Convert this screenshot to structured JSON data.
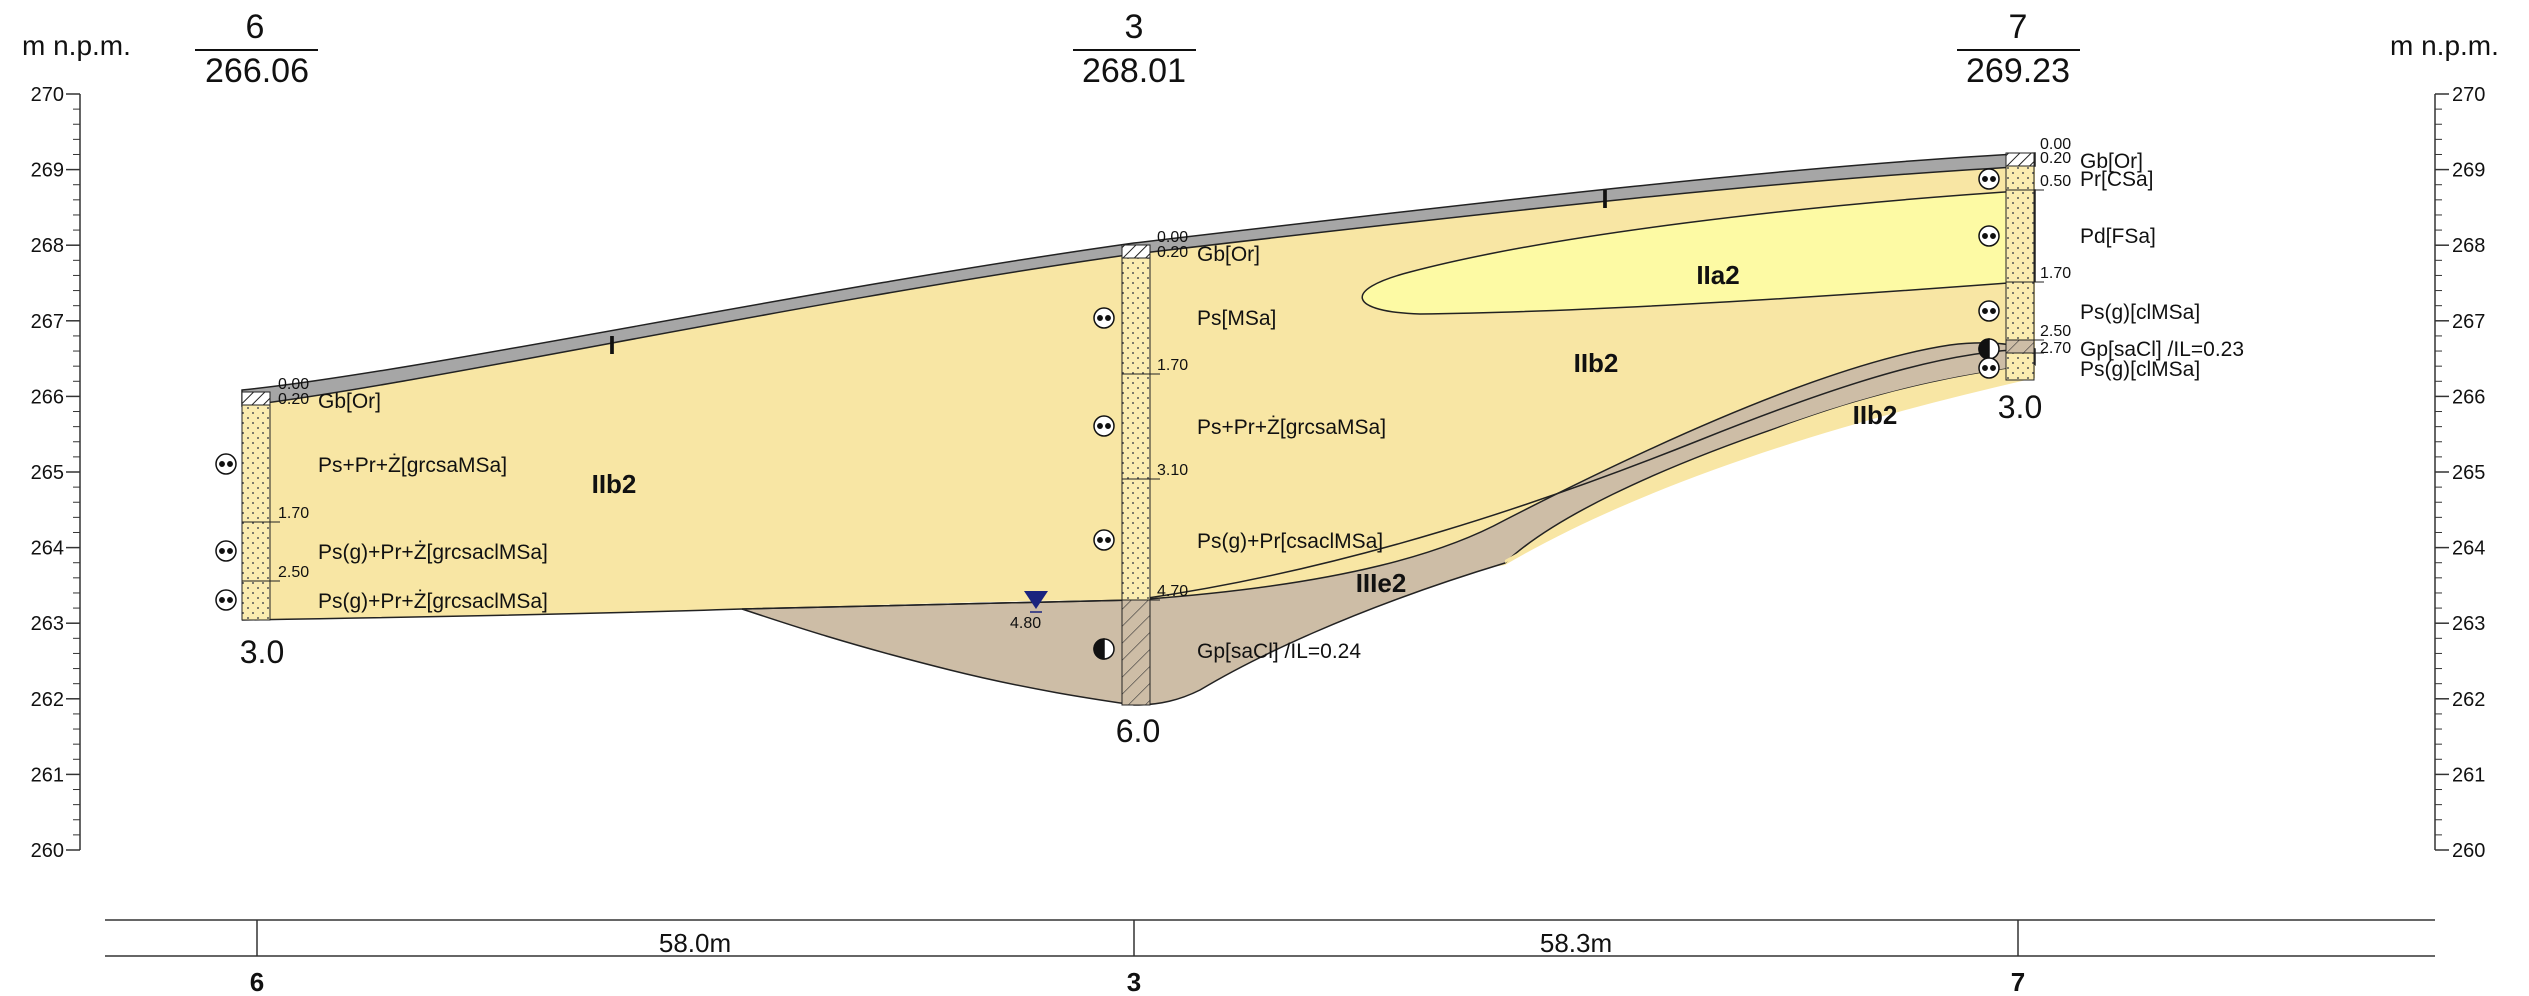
{
  "axis": {
    "unit_label_left": "m n.p.m.",
    "unit_label_right": "m n.p.m.",
    "ticks": [
      "270",
      "269",
      "268",
      "267",
      "266",
      "265",
      "264",
      "263",
      "262",
      "261",
      "260"
    ]
  },
  "boreholes": [
    {
      "id": "6",
      "elevation": "266.06",
      "depth": "3.0",
      "depth_marks": [
        "0.00",
        "0.20",
        "1.70",
        "2.50"
      ],
      "layers": [
        "Gb[Or]",
        "Ps+Pr+Ż[grcsaMSa]",
        "Ps(g)+Pr+Ż[grcsaclMSa]",
        "Ps(g)+Pr+Ż[grcsaclMSa]"
      ]
    },
    {
      "id": "3",
      "elevation": "268.01",
      "depth": "6.0",
      "depth_marks": [
        "0.00",
        "0.20",
        "1.70",
        "3.10",
        "4.70"
      ],
      "layers": [
        "Gb[Or]",
        "Ps[MSa]",
        "Ps+Pr+Ż[grcsaMSa]",
        "Ps(g)+Pr[csaclMSa]",
        "Gp[saCl] /IL=0.24"
      ],
      "water_level": "4.80"
    },
    {
      "id": "7",
      "elevation": "269.23",
      "depth": "3.0",
      "depth_marks": [
        "0.00",
        "0.20",
        "0.50",
        "1.70",
        "2.50",
        "2.70"
      ],
      "layers": [
        "Gb[Or]",
        "Pr[CSa]",
        "Pd[FSa]",
        "Ps(g)[clMSa]",
        "Gp[saCl] /IL=0.23",
        "Ps(g)[clMSa]"
      ]
    }
  ],
  "zones": [
    "I",
    "I",
    "IIb2",
    "IIb2",
    "IIb2",
    "IIa2",
    "IIIe2"
  ],
  "distances": [
    "58.0m",
    "58.3m"
  ],
  "colors": {
    "topsoil": "#a6a6a6",
    "sand": "#f8e6a4",
    "fine_sand": "#fdfaa4",
    "clay": "#cdbda6",
    "water": "#1a237e"
  }
}
